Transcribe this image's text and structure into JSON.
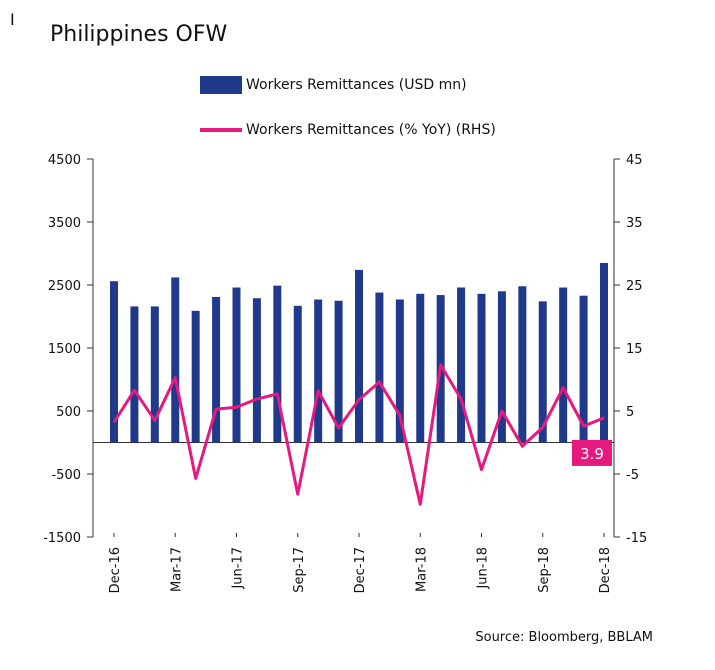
{
  "header": {
    "marker": "I",
    "title": "Philippines OFW"
  },
  "legend": {
    "bar_label": "Workers Remittances (USD mn)",
    "line_label": "Workers Remittances (% YoY) (RHS)"
  },
  "source": "Source: Bloomberg, BBLAM",
  "callout": {
    "value": "3.9"
  },
  "colors": {
    "bar": "#1f3a8a",
    "line": "#e6197f",
    "axis": "#333333"
  },
  "chart_data": {
    "type": "bar",
    "title": "Philippines OFW",
    "categories": [
      "Dec-16",
      "Jan-17",
      "Feb-17",
      "Mar-17",
      "Apr-17",
      "May-17",
      "Jun-17",
      "Jul-17",
      "Aug-17",
      "Sep-17",
      "Oct-17",
      "Nov-17",
      "Dec-17",
      "Jan-18",
      "Feb-18",
      "Mar-18",
      "Apr-18",
      "May-18",
      "Jun-18",
      "Jul-18",
      "Aug-18",
      "Sep-18",
      "Oct-18",
      "Nov-18",
      "Dec-18"
    ],
    "x_tick_labels": [
      "Dec-16",
      "Mar-17",
      "Jun-17",
      "Sep-17",
      "Dec-17",
      "Mar-18",
      "Jun-18",
      "Sep-18",
      "Dec-18"
    ],
    "y_ticks_left": [
      4500,
      3500,
      2500,
      1500,
      500,
      -500,
      -1500
    ],
    "y_ticks_right": [
      45,
      35,
      25,
      15,
      5,
      -5,
      -15
    ],
    "ylim_left": [
      -1500,
      4500
    ],
    "ylim_right": [
      -15,
      45
    ],
    "series": [
      {
        "name": "Workers Remittances (USD mn)",
        "type": "bar",
        "axis": "left",
        "values": [
          2560,
          2160,
          2160,
          2620,
          2090,
          2310,
          2460,
          2290,
          2490,
          2170,
          2270,
          2250,
          2740,
          2380,
          2270,
          2360,
          2340,
          2460,
          2360,
          2400,
          2480,
          2240,
          2460,
          2330,
          2850
        ]
      },
      {
        "name": "Workers Remittances (% YoY) (RHS)",
        "type": "line",
        "axis": "right",
        "values": [
          3.2,
          8.3,
          3.5,
          10.3,
          -5.7,
          5.3,
          5.6,
          6.9,
          7.7,
          -8.2,
          8.2,
          2.3,
          6.8,
          9.6,
          4.3,
          -9.8,
          12.3,
          6.9,
          -4.3,
          5.0,
          -0.6,
          2.4,
          8.7,
          2.6,
          3.9
        ]
      }
    ],
    "grid": false
  }
}
